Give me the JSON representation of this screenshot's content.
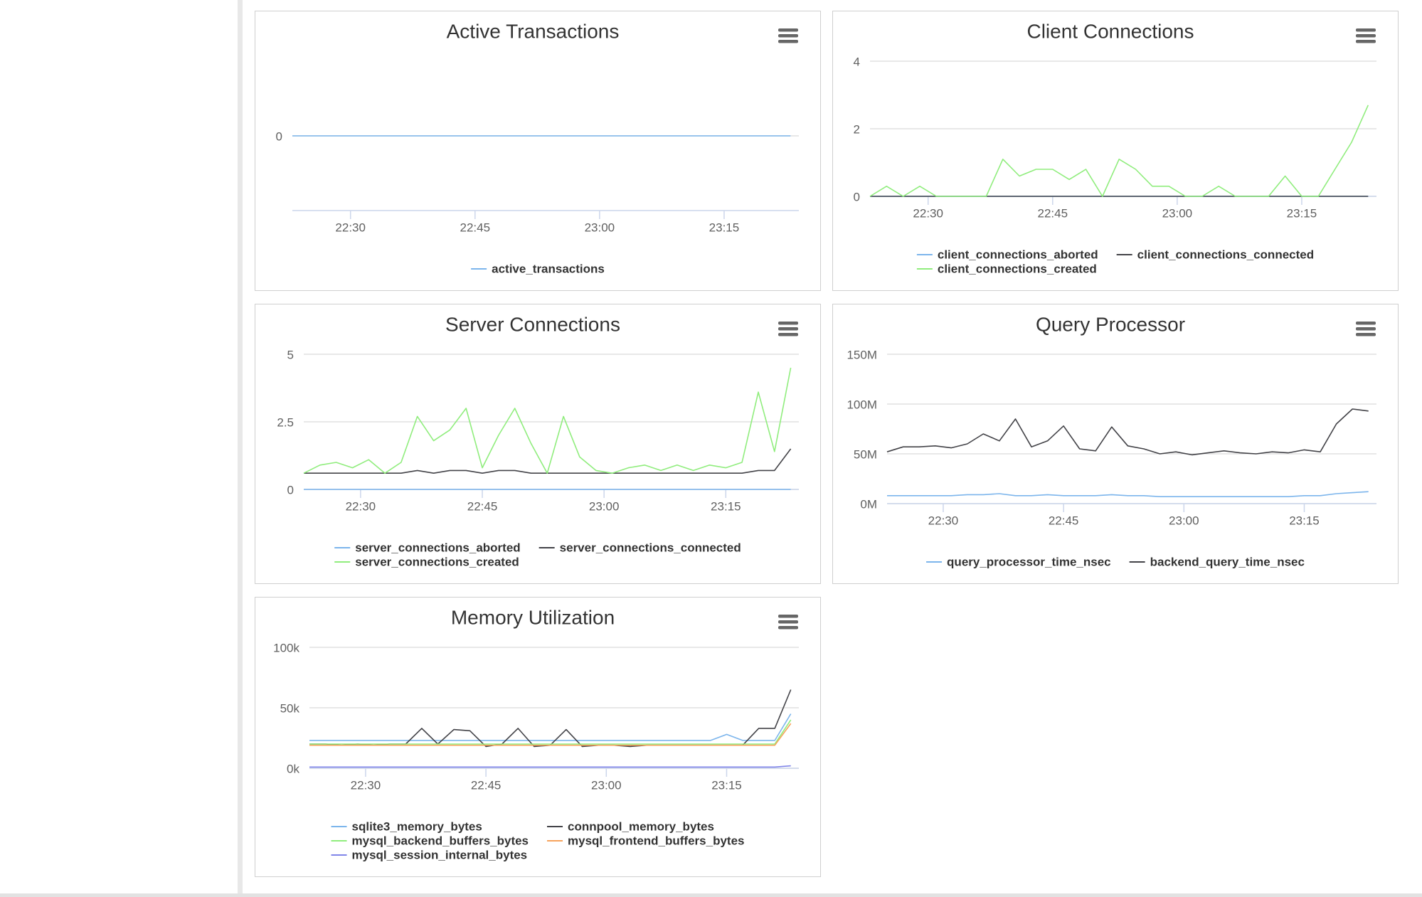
{
  "chart_data": [
    {
      "type": "line",
      "title": "Active Transactions",
      "x": [
        "22:23",
        "22:25",
        "22:27",
        "22:29",
        "22:31",
        "22:33",
        "22:35",
        "22:37",
        "22:39",
        "22:41",
        "22:43",
        "22:45",
        "22:47",
        "22:49",
        "22:51",
        "22:53",
        "22:55",
        "22:57",
        "22:59",
        "23:01",
        "23:03",
        "23:05",
        "23:07",
        "23:09",
        "23:11",
        "23:13",
        "23:15",
        "23:17",
        "23:19",
        "23:21",
        "23:23"
      ],
      "xlim": [
        "22:23",
        "23:24"
      ],
      "xticks": [
        "22:30",
        "22:45",
        "23:00",
        "23:15"
      ],
      "ylim": [
        -1,
        1
      ],
      "yticks": [
        0
      ],
      "grid": true,
      "series": [
        {
          "name": "active_transactions",
          "color": "#7cb5ec",
          "values": [
            0,
            0,
            0,
            0,
            0,
            0,
            0,
            0,
            0,
            0,
            0,
            0,
            0,
            0,
            0,
            0,
            0,
            0,
            0,
            0,
            0,
            0,
            0,
            0,
            0,
            0,
            0,
            0,
            0,
            0,
            0
          ]
        }
      ]
    },
    {
      "type": "line",
      "title": "Client Connections",
      "x": [
        "22:23",
        "22:25",
        "22:27",
        "22:29",
        "22:31",
        "22:33",
        "22:35",
        "22:37",
        "22:39",
        "22:41",
        "22:43",
        "22:45",
        "22:47",
        "22:49",
        "22:51",
        "22:53",
        "22:55",
        "22:57",
        "22:59",
        "23:01",
        "23:03",
        "23:05",
        "23:07",
        "23:09",
        "23:11",
        "23:13",
        "23:15",
        "23:17",
        "23:19",
        "23:21",
        "23:23"
      ],
      "xlim": [
        "22:23",
        "23:24"
      ],
      "xticks": [
        "22:30",
        "22:45",
        "23:00",
        "23:15"
      ],
      "ylim": [
        0,
        4
      ],
      "yticks": [
        0,
        2,
        4
      ],
      "grid": true,
      "series": [
        {
          "name": "client_connections_aborted",
          "color": "#7cb5ec",
          "values": [
            0,
            0,
            0,
            0,
            0,
            0,
            0,
            0,
            0,
            0,
            0,
            0,
            0,
            0,
            0,
            0,
            0,
            0,
            0,
            0,
            0,
            0,
            0,
            0,
            0,
            0,
            0,
            0,
            0,
            0,
            0
          ]
        },
        {
          "name": "client_connections_connected",
          "color": "#434348",
          "values": [
            0,
            0,
            0,
            0,
            0,
            0,
            0,
            0,
            0,
            0,
            0,
            0,
            0,
            0,
            0,
            0,
            0,
            0,
            0,
            0,
            0,
            0,
            0,
            0,
            0,
            0,
            0,
            0,
            0,
            0,
            0
          ]
        },
        {
          "name": "client_connections_created",
          "color": "#90ed7d",
          "values": [
            0,
            0.3,
            0,
            0.3,
            0,
            0,
            0,
            0,
            1.1,
            0.6,
            0.8,
            0.8,
            0.5,
            0.8,
            0,
            1.1,
            0.8,
            0.3,
            0.3,
            0,
            0,
            0.3,
            0,
            0,
            0,
            0.6,
            0,
            0,
            0.8,
            1.6,
            2.7
          ]
        }
      ]
    },
    {
      "type": "line",
      "title": "Server Connections",
      "x": [
        "22:23",
        "22:25",
        "22:27",
        "22:29",
        "22:31",
        "22:33",
        "22:35",
        "22:37",
        "22:39",
        "22:41",
        "22:43",
        "22:45",
        "22:47",
        "22:49",
        "22:51",
        "22:53",
        "22:55",
        "22:57",
        "22:59",
        "23:01",
        "23:03",
        "23:05",
        "23:07",
        "23:09",
        "23:11",
        "23:13",
        "23:15",
        "23:17",
        "23:19",
        "23:21",
        "23:23"
      ],
      "xlim": [
        "22:23",
        "23:24"
      ],
      "xticks": [
        "22:30",
        "22:45",
        "23:00",
        "23:15"
      ],
      "ylim": [
        0,
        5
      ],
      "yticks": [
        0,
        2.5,
        5
      ],
      "grid": true,
      "series": [
        {
          "name": "server_connections_aborted",
          "color": "#7cb5ec",
          "values": [
            0,
            0,
            0,
            0,
            0,
            0,
            0,
            0,
            0,
            0,
            0,
            0,
            0,
            0,
            0,
            0,
            0,
            0,
            0,
            0,
            0,
            0,
            0,
            0,
            0,
            0,
            0,
            0,
            0,
            0,
            0
          ]
        },
        {
          "name": "server_connections_connected",
          "color": "#434348",
          "values": [
            0.6,
            0.6,
            0.6,
            0.6,
            0.6,
            0.6,
            0.6,
            0.7,
            0.6,
            0.7,
            0.7,
            0.6,
            0.7,
            0.7,
            0.6,
            0.6,
            0.6,
            0.6,
            0.6,
            0.6,
            0.6,
            0.6,
            0.6,
            0.6,
            0.6,
            0.6,
            0.6,
            0.6,
            0.7,
            0.7,
            1.5
          ]
        },
        {
          "name": "server_connections_created",
          "color": "#90ed7d",
          "values": [
            0.6,
            0.9,
            1.0,
            0.8,
            1.1,
            0.6,
            1.0,
            2.7,
            1.8,
            2.2,
            3.0,
            0.8,
            2.0,
            3.0,
            1.7,
            0.6,
            2.7,
            1.2,
            0.7,
            0.6,
            0.8,
            0.9,
            0.7,
            0.9,
            0.7,
            0.9,
            0.8,
            1.0,
            3.6,
            1.4,
            4.5
          ]
        }
      ]
    },
    {
      "type": "line",
      "title": "Query Processor",
      "x": [
        "22:23",
        "22:25",
        "22:27",
        "22:29",
        "22:31",
        "22:33",
        "22:35",
        "22:37",
        "22:39",
        "22:41",
        "22:43",
        "22:45",
        "22:47",
        "22:49",
        "22:51",
        "22:53",
        "22:55",
        "22:57",
        "22:59",
        "23:01",
        "23:03",
        "23:05",
        "23:07",
        "23:09",
        "23:11",
        "23:13",
        "23:15",
        "23:17",
        "23:19",
        "23:21",
        "23:23"
      ],
      "xlim": [
        "22:23",
        "23:24"
      ],
      "xticks": [
        "22:30",
        "22:45",
        "23:00",
        "23:15"
      ],
      "ylim": [
        0,
        150000000
      ],
      "yticks": [
        {
          "value": 0,
          "label": "0M"
        },
        {
          "value": 50000000,
          "label": "50M"
        },
        {
          "value": 100000000,
          "label": "100M"
        },
        {
          "value": 150000000,
          "label": "150M"
        }
      ],
      "grid": true,
      "series": [
        {
          "name": "query_processor_time_nsec",
          "color": "#7cb5ec",
          "values": [
            8000000,
            8000000,
            8000000,
            8000000,
            8000000,
            9000000,
            9000000,
            10000000,
            8000000,
            8000000,
            9000000,
            8000000,
            8000000,
            8000000,
            9000000,
            8000000,
            8000000,
            7000000,
            7000000,
            7000000,
            7000000,
            7000000,
            7000000,
            7000000,
            7000000,
            7000000,
            8000000,
            8000000,
            10000000,
            11000000,
            12000000
          ]
        },
        {
          "name": "backend_query_time_nsec",
          "color": "#434348",
          "values": [
            52000000,
            57000000,
            57000000,
            58000000,
            56000000,
            60000000,
            70000000,
            63000000,
            85000000,
            57000000,
            63000000,
            78000000,
            55000000,
            53000000,
            77000000,
            58000000,
            55000000,
            50000000,
            52000000,
            49000000,
            51000000,
            53000000,
            51000000,
            50000000,
            52000000,
            51000000,
            54000000,
            52000000,
            80000000,
            95000000,
            93000000
          ]
        }
      ]
    },
    {
      "type": "line",
      "title": "Memory Utilization",
      "x": [
        "22:23",
        "22:25",
        "22:27",
        "22:29",
        "22:31",
        "22:33",
        "22:35",
        "22:37",
        "22:39",
        "22:41",
        "22:43",
        "22:45",
        "22:47",
        "22:49",
        "22:51",
        "22:53",
        "22:55",
        "22:57",
        "22:59",
        "23:01",
        "23:03",
        "23:05",
        "23:07",
        "23:09",
        "23:11",
        "23:13",
        "23:15",
        "23:17",
        "23:19",
        "23:21",
        "23:23"
      ],
      "xlim": [
        "22:23",
        "23:24"
      ],
      "xticks": [
        "22:30",
        "22:45",
        "23:00",
        "23:15"
      ],
      "ylim": [
        0,
        100000
      ],
      "yticks": [
        {
          "value": 0,
          "label": "0k"
        },
        {
          "value": 50000,
          "label": "50k"
        },
        {
          "value": 100000,
          "label": "100k"
        }
      ],
      "grid": true,
      "series": [
        {
          "name": "sqlite3_memory_bytes",
          "color": "#7cb5ec",
          "values": [
            23000,
            23000,
            23000,
            23000,
            23000,
            23000,
            23000,
            23000,
            23000,
            23000,
            23000,
            23000,
            23000,
            23000,
            23000,
            23000,
            23000,
            23000,
            23000,
            23000,
            23000,
            23000,
            23000,
            23000,
            23000,
            23000,
            28000,
            23000,
            23000,
            23000,
            45000
          ]
        },
        {
          "name": "connpool_memory_bytes",
          "color": "#434348",
          "values": [
            20000,
            20000,
            19000,
            20000,
            19000,
            20000,
            20000,
            33000,
            20000,
            32000,
            31000,
            18000,
            20000,
            33000,
            18000,
            19000,
            32000,
            18000,
            19000,
            19000,
            18000,
            19000,
            19000,
            19000,
            19000,
            19000,
            19000,
            19000,
            33000,
            33000,
            65000
          ]
        },
        {
          "name": "mysql_backend_buffers_bytes",
          "color": "#90ed7d",
          "values": [
            20000,
            20000,
            20000,
            20000,
            20000,
            20000,
            20000,
            20000,
            20000,
            20000,
            20000,
            20000,
            20000,
            20000,
            20000,
            20000,
            20000,
            20000,
            20000,
            20000,
            20000,
            20000,
            20000,
            20000,
            20000,
            20000,
            20000,
            20000,
            20000,
            20000,
            40000
          ]
        },
        {
          "name": "mysql_frontend_buffers_bytes",
          "color": "#f7a35c",
          "values": [
            19000,
            19000,
            19000,
            19000,
            19000,
            19000,
            19000,
            19000,
            19000,
            19000,
            19000,
            19000,
            19000,
            19000,
            19000,
            19000,
            19000,
            19000,
            19000,
            19000,
            19000,
            19000,
            19000,
            19000,
            19000,
            19000,
            19000,
            19000,
            19000,
            19000,
            37000
          ]
        },
        {
          "name": "mysql_session_internal_bytes",
          "color": "#8085e9",
          "values": [
            1000,
            1000,
            1000,
            1000,
            1000,
            1000,
            1000,
            1000,
            1000,
            1000,
            1000,
            1000,
            1000,
            1000,
            1000,
            1000,
            1000,
            1000,
            1000,
            1000,
            1000,
            1000,
            1000,
            1000,
            1000,
            1000,
            1000,
            1000,
            1000,
            1000,
            2000
          ]
        }
      ]
    }
  ]
}
